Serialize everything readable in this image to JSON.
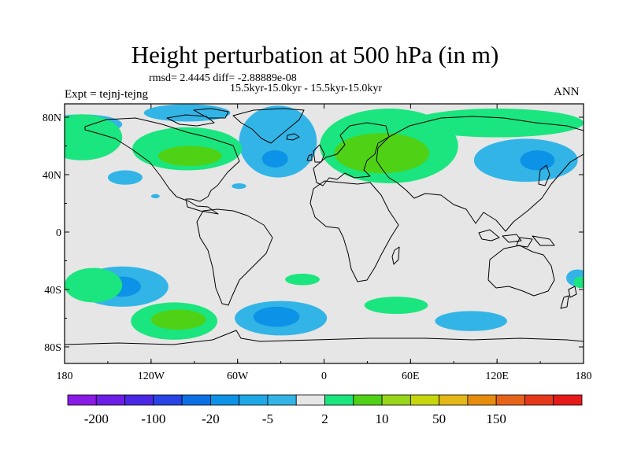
{
  "title": "Height perturbation at 500 hPa (in m)",
  "stats_line": "rmsd= 2.4445 diff= -2.88889e-08",
  "period_line": "15.5kyr-15.0kyr - 15.5kyr-15.0kyr",
  "experiment": "Expt = tejnj-tejng",
  "season": "ANN",
  "map": {
    "lat_ticks": [
      "80N",
      "40N",
      "0",
      "40S",
      "80S"
    ],
    "lon_ticks": [
      "180",
      "120W",
      "60W",
      "0",
      "60E",
      "120E",
      "180"
    ],
    "background_color": "#e6e6e6",
    "field": [
      {
        "level": "-5",
        "color": "#32b5e6",
        "lon": -95,
        "lat": 83,
        "rlon": 30,
        "rlat": 6
      },
      {
        "level": "-5",
        "color": "#32b5e6",
        "lon": -32,
        "lat": 63,
        "rlon": 27,
        "rlat": 25
      },
      {
        "level": "-5",
        "color": "#32b5e6",
        "lon": -168,
        "lat": 75,
        "rlon": 28,
        "rlat": 7
      },
      {
        "level": "2",
        "color": "#1be57e",
        "lon": -168,
        "lat": 66,
        "rlon": 28,
        "rlat": 16
      },
      {
        "level": "2",
        "color": "#1be57e",
        "lon": -95,
        "lat": 58,
        "rlon": 38,
        "rlat": 15
      },
      {
        "level": "10",
        "color": "#4fd215",
        "lon": -93,
        "lat": 53,
        "rlon": 22,
        "rlat": 7
      },
      {
        "level": "-5",
        "color": "#32b5e6",
        "lon": -138,
        "lat": 38,
        "rlon": 12,
        "rlat": 5
      },
      {
        "level": "-5",
        "color": "#32b5e6",
        "lon": -117,
        "lat": 25,
        "rlon": 3,
        "rlat": 1.5
      },
      {
        "level": "-20",
        "color": "#0c92e6",
        "lon": -34,
        "lat": 51,
        "rlon": 9,
        "rlat": 6
      },
      {
        "level": "-5",
        "color": "#32b5e6",
        "lon": -59,
        "lat": 32,
        "rlon": 5,
        "rlat": 2
      },
      {
        "level": "2",
        "color": "#1be57e",
        "lon": 45,
        "lat": 60,
        "rlon": 48,
        "rlat": 26
      },
      {
        "level": "10",
        "color": "#4fd215",
        "lon": 40,
        "lat": 55,
        "rlon": 33,
        "rlat": 14
      },
      {
        "level": "2",
        "color": "#1be57e",
        "lon": 120,
        "lat": 76,
        "rlon": 60,
        "rlat": 10
      },
      {
        "level": "-5",
        "color": "#32b5e6",
        "lon": 140,
        "lat": 50,
        "rlon": 36,
        "rlat": 15
      },
      {
        "level": "-20",
        "color": "#0c92e6",
        "lon": 148,
        "lat": 50,
        "rlon": 12,
        "rlat": 7
      },
      {
        "level": "-5",
        "color": "#32b5e6",
        "lon": -140,
        "lat": -38,
        "rlon": 32,
        "rlat": 14
      },
      {
        "level": "-20",
        "color": "#0c92e6",
        "lon": -140,
        "lat": -38,
        "rlon": 13,
        "rlat": 7
      },
      {
        "level": "2",
        "color": "#1be57e",
        "lon": -160,
        "lat": -37,
        "rlon": 20,
        "rlat": 12
      },
      {
        "level": "2",
        "color": "#1be57e",
        "lon": -104,
        "lat": -62,
        "rlon": 30,
        "rlat": 13
      },
      {
        "level": "10",
        "color": "#4fd215",
        "lon": -101,
        "lat": -61,
        "rlon": 19,
        "rlat": 7
      },
      {
        "level": "2",
        "color": "#1be57e",
        "lon": -15,
        "lat": -33,
        "rlon": 12,
        "rlat": 4
      },
      {
        "level": "-5",
        "color": "#32b5e6",
        "lon": -30,
        "lat": -60,
        "rlon": 32,
        "rlat": 12
      },
      {
        "level": "-20",
        "color": "#0c92e6",
        "lon": -33,
        "lat": -59,
        "rlon": 16,
        "rlat": 7
      },
      {
        "level": "2",
        "color": "#1be57e",
        "lon": 50,
        "lat": -51,
        "rlon": 22,
        "rlat": 6
      },
      {
        "level": "-5",
        "color": "#32b5e6",
        "lon": 102,
        "lat": -62,
        "rlon": 25,
        "rlat": 7
      },
      {
        "level": "-5",
        "color": "#32b5e6",
        "lon": 176,
        "lat": -32,
        "rlon": 8,
        "rlat": 6
      },
      {
        "level": "2",
        "color": "#1be57e",
        "lon": 178,
        "lat": -35,
        "rlon": 5,
        "rlat": 4
      }
    ]
  },
  "colorbar": {
    "colors": [
      "#8c1ae6",
      "#6c1ee6",
      "#4a27e6",
      "#2844e6",
      "#0c6fe6",
      "#0c92e6",
      "#1fa8e6",
      "#32b5e6",
      "#e6e6e6",
      "#1be57e",
      "#4fd215",
      "#98d61a",
      "#c6d60d",
      "#e4b817",
      "#e68d0d",
      "#e6641a",
      "#e6381a",
      "#e61a1a"
    ],
    "labels": [
      "-200",
      "-100",
      "-20",
      "-5",
      "2",
      "10",
      "50",
      "150"
    ]
  }
}
